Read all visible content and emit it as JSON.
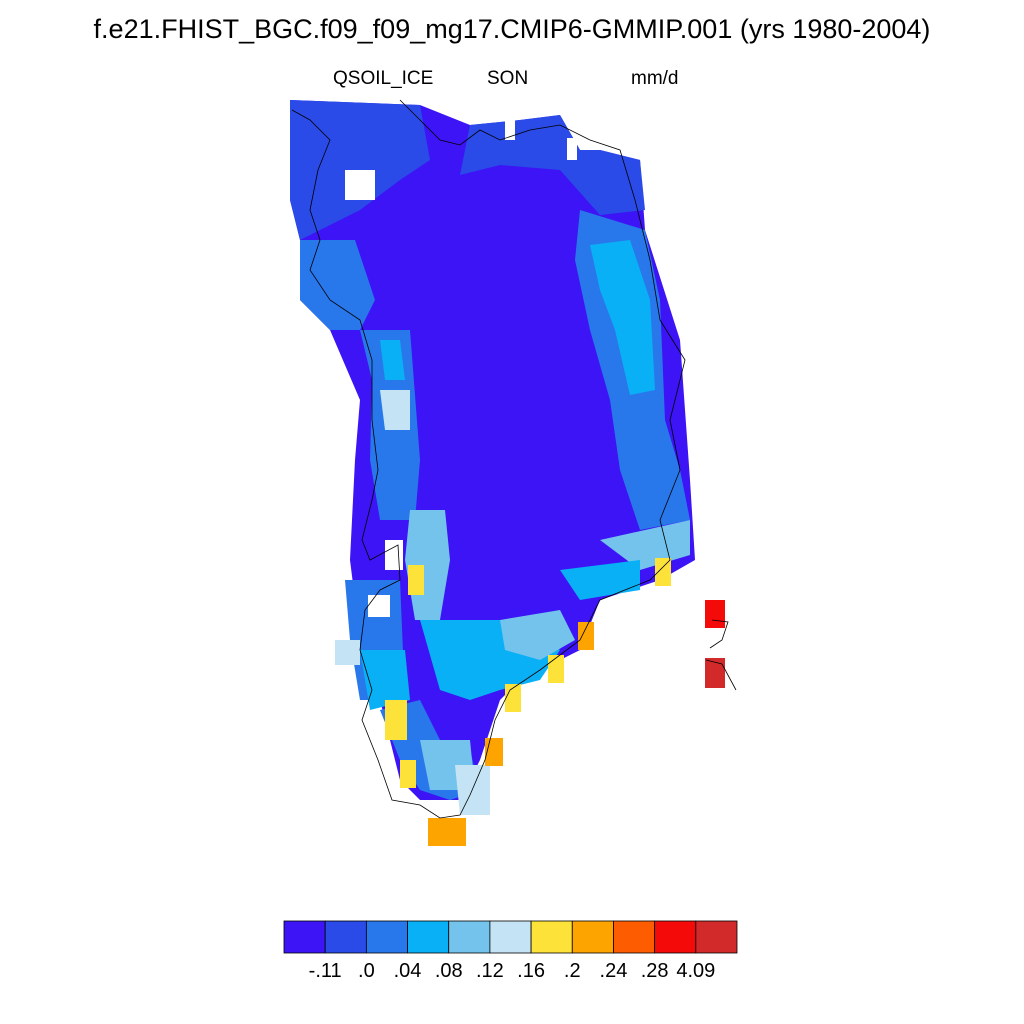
{
  "title": "f.e21.FHIST_BGC.f09_f09_mg17.CMIP6-GMMIP.001 (yrs 1980-2004)",
  "variable": "QSOIL_ICE",
  "season": "SON",
  "units": "mm/d",
  "colorbar": {
    "colors": [
      "#3c14f5",
      "#2a4be8",
      "#2878ec",
      "#0ab0f5",
      "#74c3ec",
      "#c4e3f4",
      "#fde23a",
      "#fda400",
      "#fd5c00",
      "#f50a0a",
      "#d22a2a"
    ],
    "labels": [
      "-.11",
      ".0",
      ".04",
      ".08",
      ".12",
      ".16",
      ".2",
      ".24",
      ".28",
      "4.09"
    ]
  }
}
